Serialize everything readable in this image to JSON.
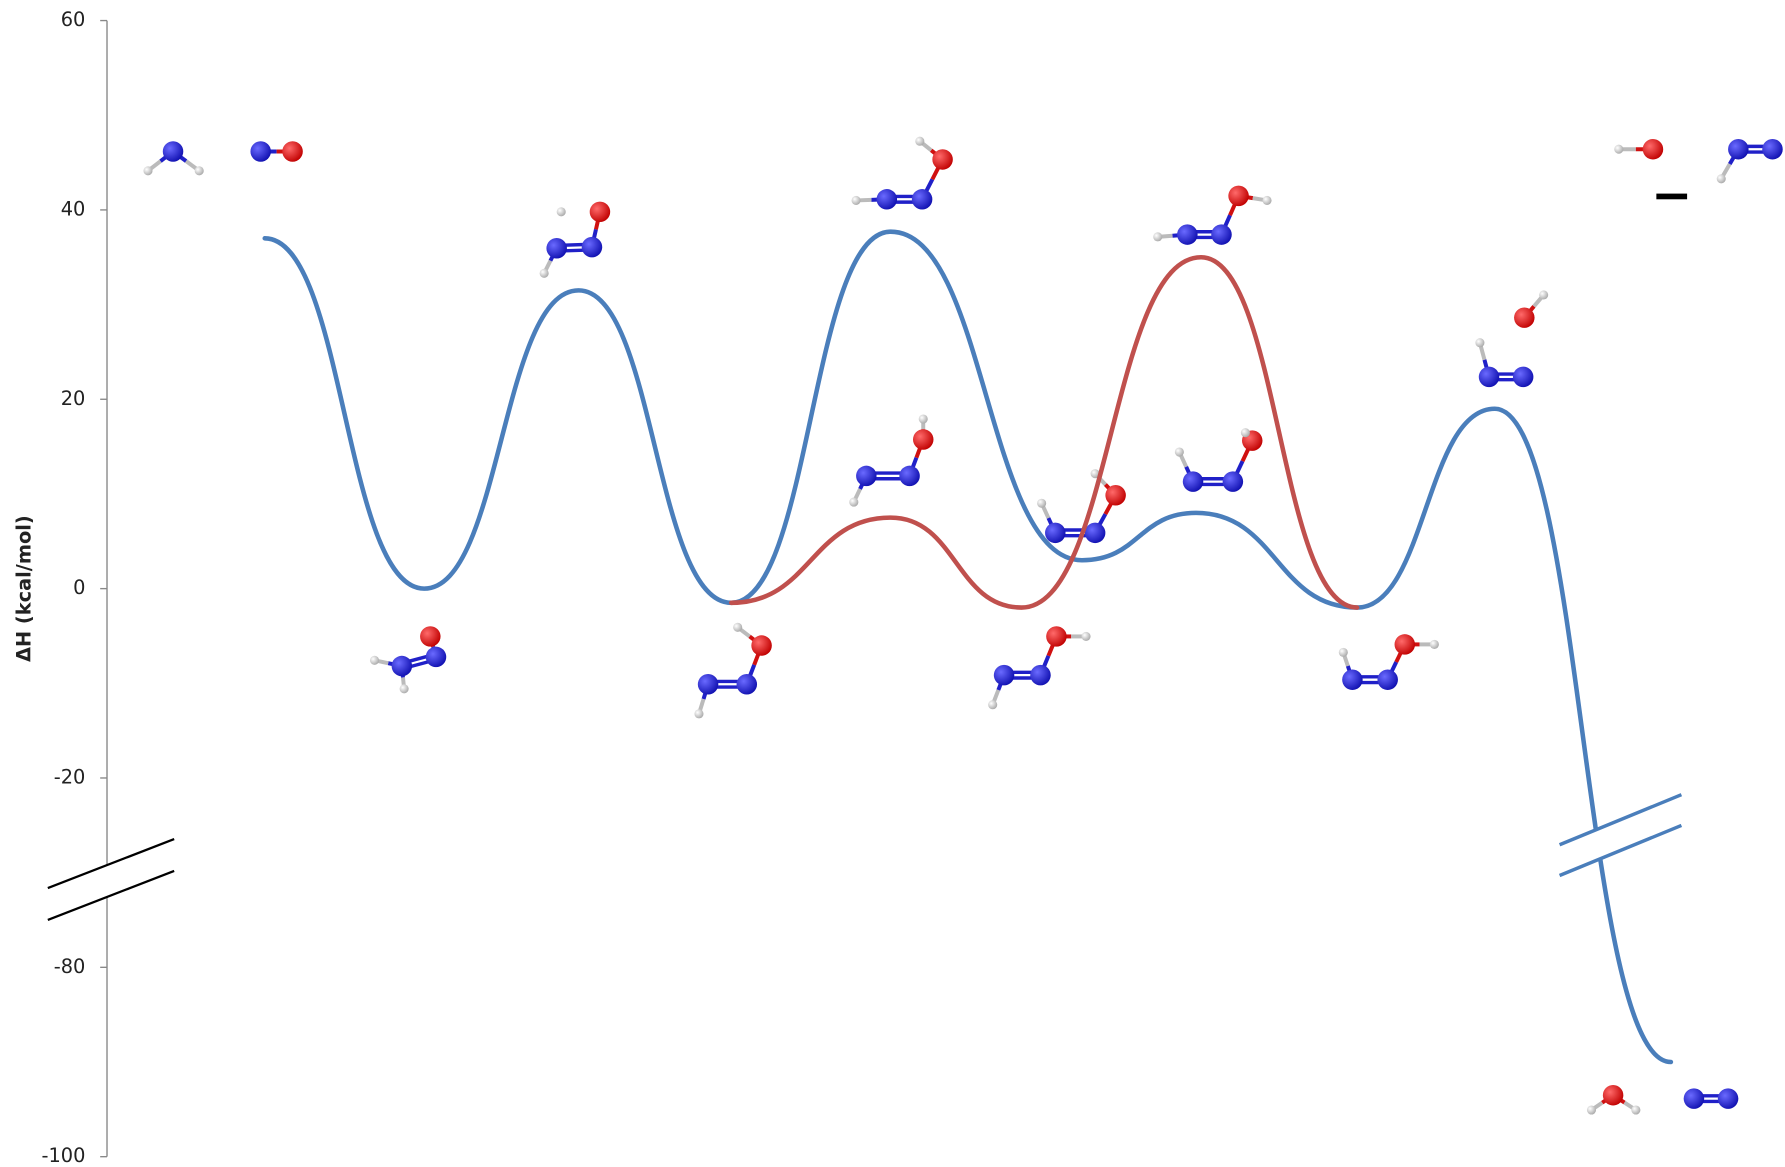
{
  "chart_data": {
    "type": "line",
    "y_label": "ΔH (kcal/mol)",
    "xlim": [
      0,
      100
    ],
    "ylim": [
      -100,
      60
    ],
    "yticks": [
      -100,
      -80,
      -20,
      0,
      20,
      40,
      60
    ],
    "y_break": [
      -80,
      -20
    ],
    "series": [
      {
        "color": "#4a7ebb",
        "x": [
          9.4,
          18.9,
          28.1,
          37.2,
          46.7,
          58.1,
          64.9,
          74.5,
          82.7,
          93.2
        ],
        "values": [
          37,
          0,
          31.5,
          -1.5,
          37.7,
          3,
          8,
          -2,
          19,
          -90
        ]
      },
      {
        "color": "#c0504d",
        "x": [
          37.2,
          46.7,
          54.5,
          65.2,
          74.5
        ],
        "values": [
          -1.5,
          7.5,
          -2,
          35,
          -2
        ]
      }
    ]
  }
}
